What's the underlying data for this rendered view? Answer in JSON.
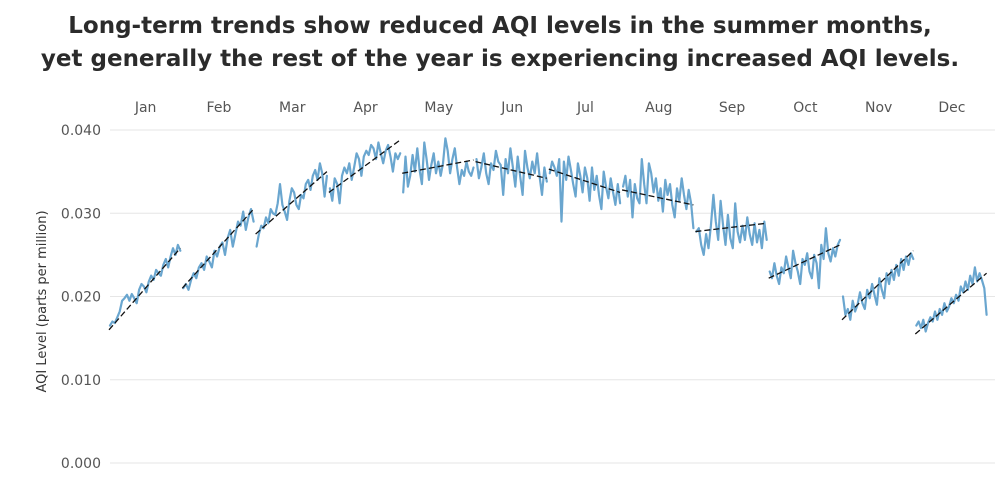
{
  "title": {
    "line1": "Long-term trends show reduced AQI levels in the summer months,",
    "line2": "yet generally the rest of the year is experiencing increased AQI levels."
  },
  "chart_data": {
    "type": "line",
    "ylabel": "AQI Level (parts per million)",
    "ylim": [
      0,
      0.04
    ],
    "yticks": [
      "0.000",
      "0.010",
      "0.020",
      "0.030",
      "0.040"
    ],
    "ytick_values": [
      0,
      0.01,
      0.02,
      0.03,
      0.04
    ],
    "grid": true,
    "colors": {
      "series": "#6aa6cf",
      "trend": "#111111",
      "grid": "#e6e6e6"
    },
    "months": [
      {
        "label": "Jan",
        "values": [
          0.0165,
          0.017,
          0.0168,
          0.0175,
          0.0182,
          0.0195,
          0.0198,
          0.0202,
          0.0195,
          0.0203,
          0.0198,
          0.0192,
          0.0208,
          0.0215,
          0.0212,
          0.0205,
          0.0218,
          0.0225,
          0.022,
          0.0232,
          0.0228,
          0.0225,
          0.0238,
          0.0245,
          0.0235,
          0.0248,
          0.0258,
          0.025,
          0.0262,
          0.0255
        ],
        "trend": [
          0.016,
          0.0258
        ]
      },
      {
        "label": "Feb",
        "values": [
          0.021,
          0.0215,
          0.0208,
          0.022,
          0.0228,
          0.0222,
          0.0235,
          0.024,
          0.0232,
          0.0248,
          0.0242,
          0.0235,
          0.0255,
          0.0248,
          0.026,
          0.0265,
          0.025,
          0.027,
          0.028,
          0.026,
          0.0275,
          0.029,
          0.0285,
          0.0302,
          0.028,
          0.0295,
          0.0305,
          0.029
        ],
        "trend": [
          0.021,
          0.0305
        ]
      },
      {
        "label": "Mar",
        "values": [
          0.026,
          0.0275,
          0.0285,
          0.0282,
          0.0295,
          0.0288,
          0.0305,
          0.03,
          0.0298,
          0.0312,
          0.0335,
          0.031,
          0.0302,
          0.0292,
          0.0315,
          0.033,
          0.0325,
          0.031,
          0.0305,
          0.0322,
          0.0318,
          0.0335,
          0.034,
          0.0328,
          0.0345,
          0.0352,
          0.034,
          0.036,
          0.0348,
          0.032,
          0.0345
        ],
        "trend": [
          0.0275,
          0.035
        ]
      },
      {
        "label": "Apr",
        "values": [
          0.033,
          0.0315,
          0.0342,
          0.0335,
          0.0312,
          0.0345,
          0.0355,
          0.0348,
          0.036,
          0.034,
          0.0355,
          0.0372,
          0.0365,
          0.0345,
          0.0368,
          0.0375,
          0.037,
          0.0382,
          0.0378,
          0.0365,
          0.0385,
          0.0372,
          0.036,
          0.0375,
          0.0382,
          0.0368,
          0.035,
          0.0372,
          0.0365,
          0.0372
        ],
        "trend": [
          0.0325,
          0.0388
        ]
      },
      {
        "label": "May",
        "values": [
          0.0325,
          0.0368,
          0.0332,
          0.0345,
          0.037,
          0.035,
          0.0378,
          0.0352,
          0.0335,
          0.0385,
          0.0365,
          0.034,
          0.0358,
          0.0372,
          0.0348,
          0.0362,
          0.0345,
          0.036,
          0.039,
          0.0375,
          0.0348,
          0.0365,
          0.0378,
          0.0355,
          0.0335,
          0.0352,
          0.0345,
          0.0362,
          0.035,
          0.0345,
          0.0355
        ],
        "trend": [
          0.0348,
          0.0364
        ]
      },
      {
        "label": "Jun",
        "values": [
          0.0365,
          0.0342,
          0.0355,
          0.0372,
          0.0348,
          0.0335,
          0.036,
          0.0352,
          0.0375,
          0.0362,
          0.0358,
          0.0322,
          0.0365,
          0.0348,
          0.0378,
          0.0355,
          0.0332,
          0.0368,
          0.0345,
          0.0322,
          0.0375,
          0.0355,
          0.0342,
          0.0362,
          0.0348,
          0.0372,
          0.0345,
          0.0322,
          0.0355,
          0.0338
        ],
        "trend": [
          0.0362,
          0.0342
        ]
      },
      {
        "label": "Jul",
        "values": [
          0.0348,
          0.0362,
          0.0355,
          0.0345,
          0.0365,
          0.029,
          0.0362,
          0.034,
          0.0368,
          0.0352,
          0.0335,
          0.032,
          0.036,
          0.0345,
          0.0325,
          0.0355,
          0.0342,
          0.0315,
          0.0355,
          0.0328,
          0.0345,
          0.0322,
          0.0305,
          0.035,
          0.0332,
          0.0318,
          0.0342,
          0.0325,
          0.031,
          0.0335,
          0.0312
        ],
        "trend": [
          0.0353,
          0.0325
        ]
      },
      {
        "label": "Aug",
        "values": [
          0.0332,
          0.0345,
          0.032,
          0.034,
          0.0295,
          0.0335,
          0.0318,
          0.0312,
          0.0365,
          0.0335,
          0.0312,
          0.036,
          0.0348,
          0.0325,
          0.0342,
          0.0315,
          0.033,
          0.0302,
          0.034,
          0.0322,
          0.0335,
          0.031,
          0.0295,
          0.033,
          0.0315,
          0.0342,
          0.0322,
          0.0305,
          0.0328,
          0.0312,
          0.0282
        ],
        "trend": [
          0.0328,
          0.031
        ]
      },
      {
        "label": "Sep",
        "values": [
          0.0278,
          0.0282,
          0.0262,
          0.025,
          0.0275,
          0.0258,
          0.0285,
          0.0322,
          0.029,
          0.0268,
          0.0315,
          0.0285,
          0.0262,
          0.0298,
          0.027,
          0.0258,
          0.0312,
          0.0278,
          0.0265,
          0.0285,
          0.0268,
          0.0295,
          0.0275,
          0.0262,
          0.0288,
          0.0265,
          0.028,
          0.0258,
          0.029,
          0.0268
        ],
        "trend": [
          0.0278,
          0.0288
        ]
      },
      {
        "label": "Oct",
        "values": [
          0.023,
          0.0222,
          0.024,
          0.0225,
          0.0215,
          0.0235,
          0.0228,
          0.0248,
          0.0235,
          0.0222,
          0.0255,
          0.024,
          0.023,
          0.0215,
          0.0245,
          0.0238,
          0.0252,
          0.023,
          0.0222,
          0.025,
          0.024,
          0.021,
          0.0262,
          0.0245,
          0.0282,
          0.0252,
          0.0242,
          0.0258,
          0.0248,
          0.0262,
          0.0268
        ],
        "trend": [
          0.0222,
          0.0262
        ]
      },
      {
        "label": "Nov",
        "values": [
          0.02,
          0.0178,
          0.0185,
          0.0172,
          0.0195,
          0.0182,
          0.019,
          0.0205,
          0.0192,
          0.0185,
          0.0208,
          0.0198,
          0.0215,
          0.0202,
          0.019,
          0.0222,
          0.0208,
          0.0198,
          0.0228,
          0.0215,
          0.0232,
          0.022,
          0.0238,
          0.0225,
          0.0245,
          0.0232,
          0.0248,
          0.0238,
          0.0252,
          0.0245
        ],
        "trend": [
          0.0172,
          0.0255
        ]
      },
      {
        "label": "Dec",
        "values": [
          0.0165,
          0.017,
          0.0162,
          0.0172,
          0.0158,
          0.0168,
          0.0175,
          0.017,
          0.0182,
          0.0172,
          0.0185,
          0.0178,
          0.0192,
          0.0182,
          0.0188,
          0.0198,
          0.0192,
          0.0202,
          0.0195,
          0.0212,
          0.0205,
          0.0218,
          0.0208,
          0.0225,
          0.0215,
          0.0235,
          0.0218,
          0.0228,
          0.022,
          0.021,
          0.0178
        ],
        "trend": [
          0.0155,
          0.0228
        ]
      }
    ]
  }
}
